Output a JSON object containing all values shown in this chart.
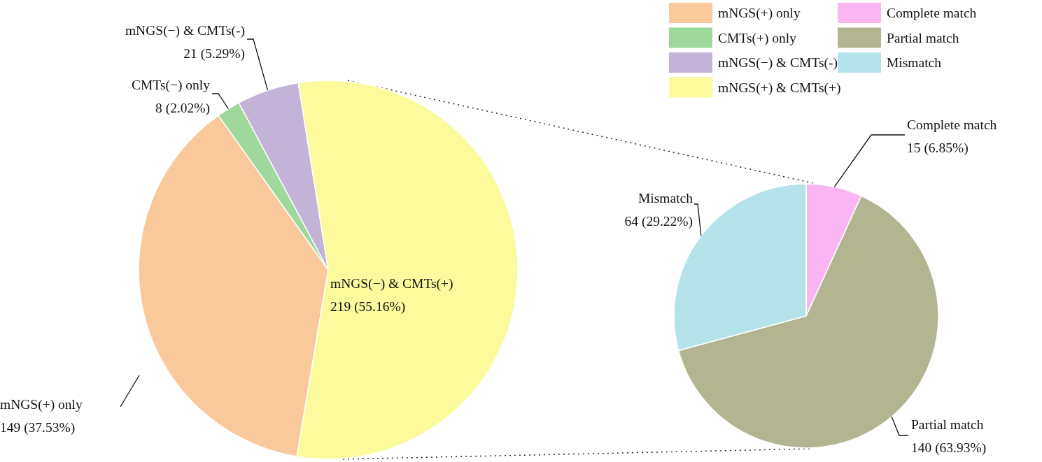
{
  "chart_data": [
    {
      "type": "pie",
      "categories": [
        "mNGS(+) only",
        "CMTs(+) only",
        "mNGS(−) & CMTs(-)",
        "mNGS(+) & CMTs(+)"
      ],
      "values": [
        149,
        8,
        21,
        219
      ],
      "colors": [
        "#f9c89b",
        "#9ed89a",
        "#c3b3d9",
        "#fbfb9e"
      ],
      "value_labels": [
        "mNGS(+) only\n149 (37.53%)",
        "CMTs(−) only\n8 (2.02%)",
        "mNGS(−) & CMTs(-)\n21 (5.29%)",
        "mNGS(−) & CMTs(+)\n219 (55.16%)"
      ],
      "legend": "top right"
    },
    {
      "type": "pie",
      "categories": [
        "Complete match",
        "Partial match",
        "Mismatch"
      ],
      "values": [
        15,
        140,
        64
      ],
      "colors": [
        "#f9b6f3",
        "#b2b58f",
        "#b5e3ea"
      ],
      "value_labels": [
        "Complete match\n15 (6.85%)",
        "Partial match\n140 (63.93%)",
        "Mismatch\n64 (29.22%)"
      ],
      "legend": "top right"
    }
  ]
}
